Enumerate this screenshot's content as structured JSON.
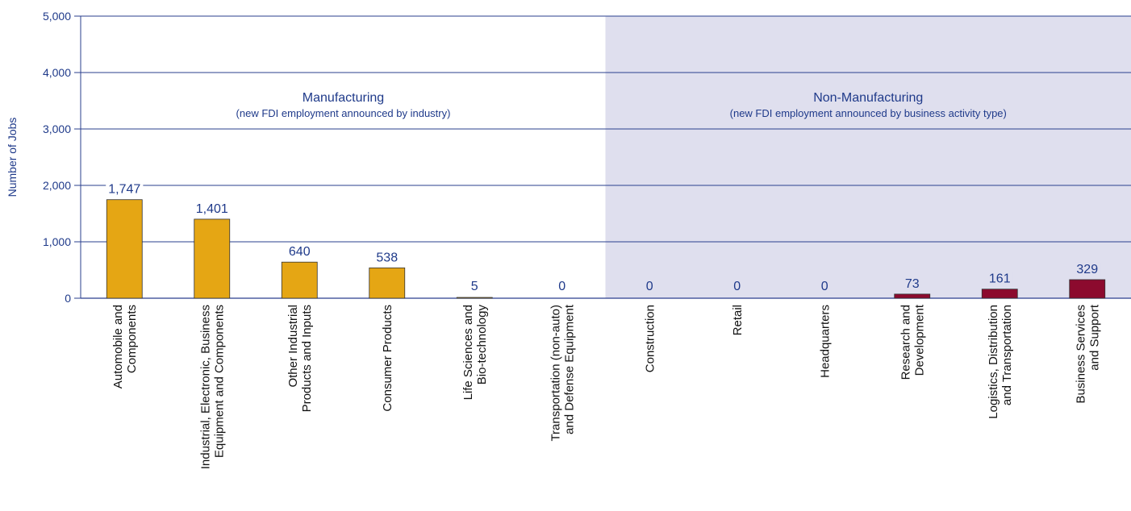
{
  "chart_data": {
    "type": "bar",
    "ylabel": "Number of Jobs",
    "ylim": [
      0,
      5000
    ],
    "yticks": [
      "0",
      "1,000",
      "2,000",
      "3,000",
      "4,000",
      "5,000"
    ],
    "ytick_values": [
      0,
      1000,
      2000,
      3000,
      4000,
      5000
    ],
    "grid": true,
    "categories": [
      {
        "lines": [
          "Automobile and",
          "Components"
        ],
        "value": 1747,
        "label": "1,747",
        "group": "manufacturing"
      },
      {
        "lines": [
          "Industrial, Electronic, Business",
          "Equipment and Components"
        ],
        "value": 1401,
        "label": "1,401",
        "group": "manufacturing"
      },
      {
        "lines": [
          "Other Industrial",
          "Products and Inputs"
        ],
        "value": 640,
        "label": "640",
        "group": "manufacturing"
      },
      {
        "lines": [
          "Consumer Products"
        ],
        "value": 538,
        "label": "538",
        "group": "manufacturing"
      },
      {
        "lines": [
          "Life Sciences and",
          "Bio-technology"
        ],
        "value": 5,
        "label": "5",
        "group": "manufacturing"
      },
      {
        "lines": [
          "Transportation (non-auto)",
          "and Defense Equipment"
        ],
        "value": 0,
        "label": "0",
        "group": "manufacturing"
      },
      {
        "lines": [
          "Construction"
        ],
        "value": 0,
        "label": "0",
        "group": "non-manufacturing"
      },
      {
        "lines": [
          "Retail"
        ],
        "value": 0,
        "label": "0",
        "group": "non-manufacturing"
      },
      {
        "lines": [
          "Headquarters"
        ],
        "value": 0,
        "label": "0",
        "group": "non-manufacturing"
      },
      {
        "lines": [
          "Research and",
          "Development"
        ],
        "value": 73,
        "label": "73",
        "group": "non-manufacturing"
      },
      {
        "lines": [
          "Logistics, Distribution",
          "and Transportation"
        ],
        "value": 161,
        "label": "161",
        "group": "non-manufacturing"
      },
      {
        "lines": [
          "Business Services",
          "and Support"
        ],
        "value": 329,
        "label": "329",
        "group": "non-manufacturing"
      }
    ],
    "groups": {
      "manufacturing": {
        "title": "Manufacturing",
        "subtitle": "(new FDI employment announced by industry)",
        "bar_color": "#E5A614"
      },
      "non-manufacturing": {
        "title": "Non-Manufacturing",
        "subtitle": "(new FDI employment announced by business activity type)",
        "bar_color": "#8C0A2E",
        "shade_color": "#DFDFEE"
      }
    },
    "colors": {
      "axis": "#2A3F8E",
      "grid": "#2A3F8E",
      "text": "#1F3A8A"
    }
  }
}
